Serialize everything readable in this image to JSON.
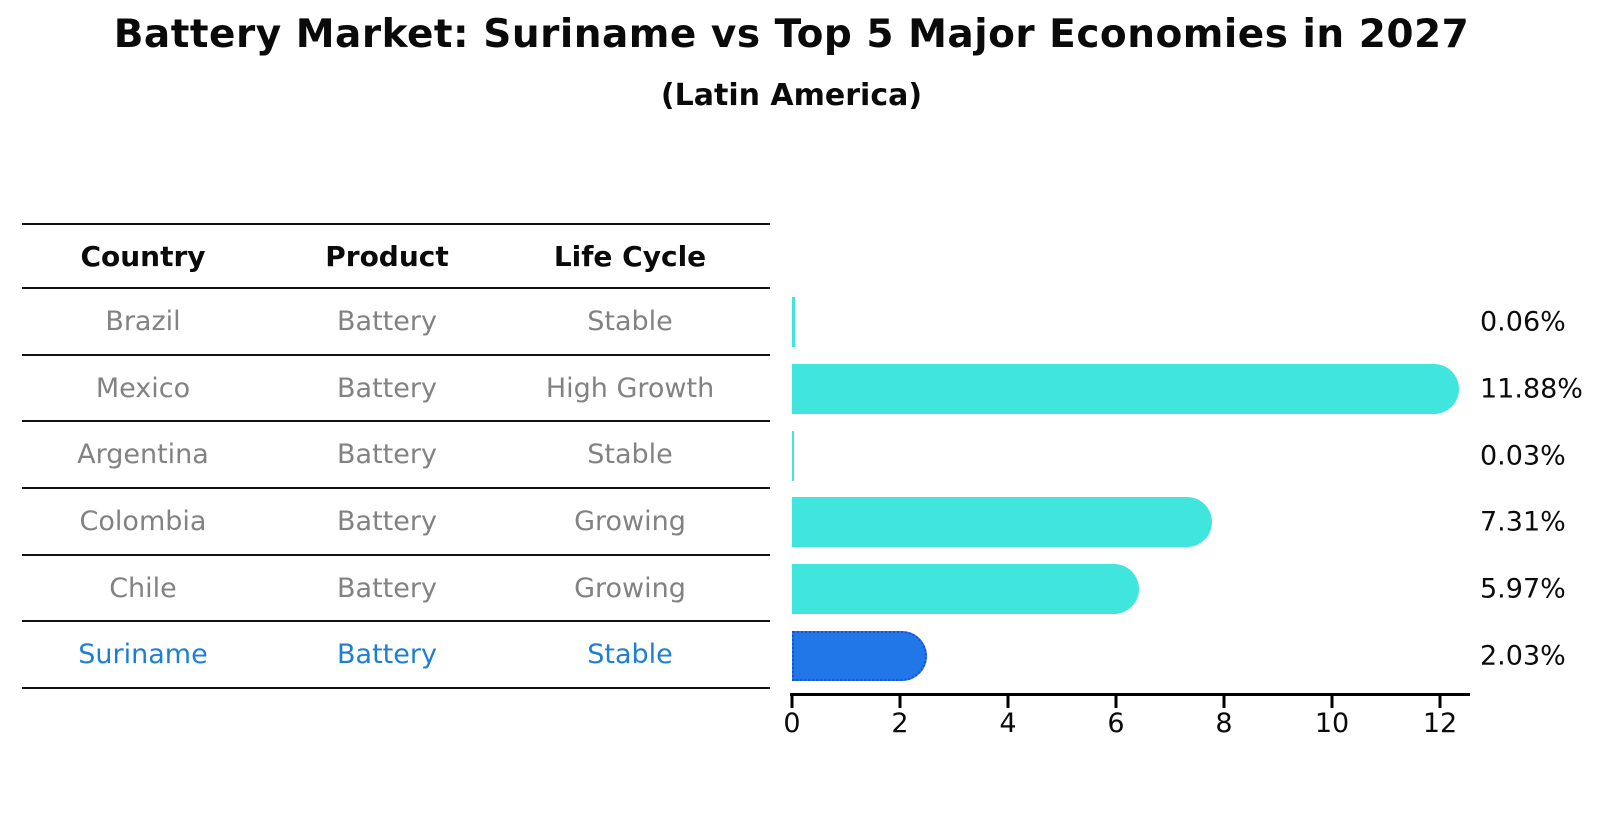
{
  "chart_data": {
    "type": "bar",
    "orientation": "horizontal",
    "title": "Battery Market: Suriname vs Top 5 Major Economies in 2027",
    "subtitle": "(Latin America)",
    "columns": [
      "Country",
      "Product",
      "Life Cycle"
    ],
    "categories": [
      "Brazil",
      "Mexico",
      "Argentina",
      "Colombia",
      "Chile",
      "Suriname"
    ],
    "values": [
      0.06,
      11.88,
      0.03,
      7.31,
      5.97,
      2.03
    ],
    "unit": "%",
    "rows": [
      {
        "country": "Brazil",
        "product": "Battery",
        "life_cycle": "Stable",
        "value": 0.06,
        "label": "0.06%",
        "highlight": false
      },
      {
        "country": "Mexico",
        "product": "Battery",
        "life_cycle": "High Growth",
        "value": 11.88,
        "label": "11.88%",
        "highlight": false
      },
      {
        "country": "Argentina",
        "product": "Battery",
        "life_cycle": "Stable",
        "value": 0.03,
        "label": "0.03%",
        "highlight": false
      },
      {
        "country": "Colombia",
        "product": "Battery",
        "life_cycle": "Growing",
        "value": 7.31,
        "label": "7.31%",
        "highlight": false
      },
      {
        "country": "Chile",
        "product": "Battery",
        "life_cycle": "Growing",
        "value": 5.97,
        "label": "5.97%",
        "highlight": false
      },
      {
        "country": "Suriname",
        "product": "Battery",
        "life_cycle": "Stable",
        "value": 2.03,
        "label": "2.03%",
        "highlight": true
      }
    ],
    "x_ticks": [
      "0",
      "2",
      "4",
      "6",
      "8",
      "10",
      "12"
    ],
    "xlim": [
      0,
      12.55
    ],
    "grid": false,
    "legend": "none",
    "colors": {
      "bar": "#40e5dd",
      "highlight_bar": "#2277e8",
      "highlight_bar_border": "#1d4ed8",
      "highlight_text": "#1e7fd0",
      "row_text": "#828282",
      "header_text": "#0a0a0a",
      "axis": "#000000"
    }
  }
}
